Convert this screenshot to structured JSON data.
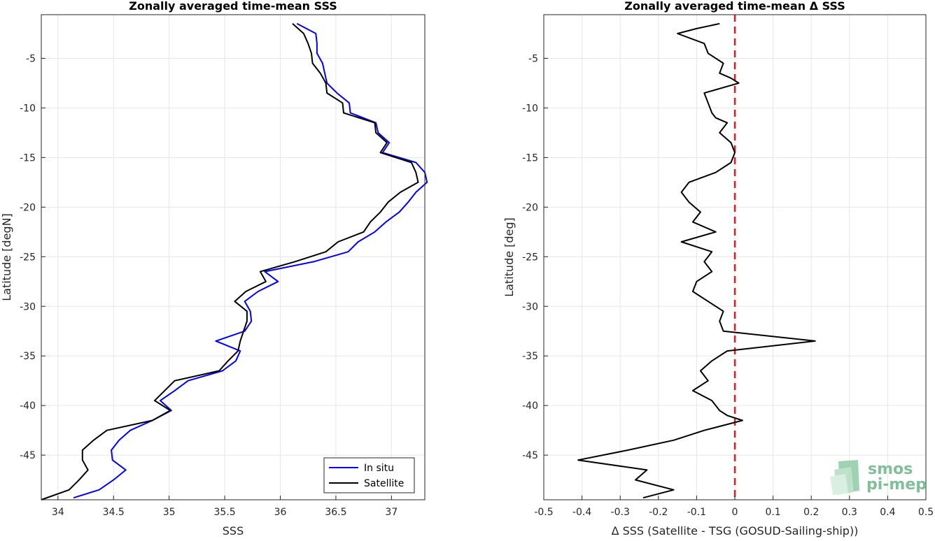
{
  "chart_data": [
    {
      "type": "line",
      "title": "Zonally averaged time-mean SSS",
      "xlabel": "SSS",
      "ylabel": "Latitude [degN]",
      "xlim": [
        33.85,
        37.3
      ],
      "ylim": [
        -49.5,
        -0.6
      ],
      "xticks": [
        34,
        34.5,
        35,
        35.5,
        36,
        36.5,
        37
      ],
      "xtick_labels": [
        "34",
        "34.5",
        "35",
        "35.5",
        "36",
        "36.5",
        "37"
      ],
      "yticks": [
        -45,
        -40,
        -35,
        -30,
        -25,
        -20,
        -15,
        -10,
        -5
      ],
      "ytick_labels": [
        "-45",
        "-40",
        "-35",
        "-30",
        "-25",
        "-20",
        "-15",
        "-10",
        "-5"
      ],
      "grid": true,
      "legend": "bottom-right",
      "series": [
        {
          "name": "In situ",
          "color": "#0000ff",
          "points": [
            [
              36.15,
              -1.5
            ],
            [
              36.32,
              -2.5
            ],
            [
              36.33,
              -3.5
            ],
            [
              36.33,
              -4.5
            ],
            [
              36.38,
              -5.5
            ],
            [
              36.4,
              -6.5
            ],
            [
              36.42,
              -7.5
            ],
            [
              36.51,
              -8.5
            ],
            [
              36.62,
              -9.5
            ],
            [
              36.63,
              -10.5
            ],
            [
              36.86,
              -11.5
            ],
            [
              36.88,
              -12.5
            ],
            [
              36.98,
              -13.5
            ],
            [
              36.92,
              -14.5
            ],
            [
              37.22,
              -15.5
            ],
            [
              37.3,
              -16.5
            ],
            [
              37.32,
              -17.5
            ],
            [
              37.22,
              -18.5
            ],
            [
              37.15,
              -19.5
            ],
            [
              37.07,
              -20.5
            ],
            [
              36.95,
              -21.5
            ],
            [
              36.85,
              -22.5
            ],
            [
              36.7,
              -23.5
            ],
            [
              36.61,
              -24.5
            ],
            [
              36.3,
              -25.5
            ],
            [
              35.86,
              -26.5
            ],
            [
              35.98,
              -27.5
            ],
            [
              35.8,
              -28.5
            ],
            [
              35.68,
              -29.5
            ],
            [
              35.73,
              -30.5
            ],
            [
              35.74,
              -31.5
            ],
            [
              35.68,
              -32.5
            ],
            [
              35.42,
              -33.5
            ],
            [
              35.64,
              -34.5
            ],
            [
              35.6,
              -35.5
            ],
            [
              35.48,
              -36.5
            ],
            [
              35.17,
              -37.5
            ],
            [
              35.05,
              -38.5
            ],
            [
              34.92,
              -39.5
            ],
            [
              35.02,
              -40.5
            ],
            [
              34.85,
              -41.5
            ],
            [
              34.65,
              -42.5
            ],
            [
              34.55,
              -43.5
            ],
            [
              34.48,
              -44.5
            ],
            [
              34.49,
              -45.5
            ],
            [
              34.61,
              -46.5
            ],
            [
              34.5,
              -47.5
            ],
            [
              34.37,
              -48.5
            ],
            [
              34.14,
              -49.3
            ]
          ]
        },
        {
          "name": "Satellite",
          "color": "#000000",
          "points": [
            [
              36.11,
              -1.5
            ],
            [
              36.21,
              -2.5
            ],
            [
              36.25,
              -3.5
            ],
            [
              36.28,
              -4.5
            ],
            [
              36.29,
              -5.5
            ],
            [
              36.36,
              -6.5
            ],
            [
              36.41,
              -7.5
            ],
            [
              36.42,
              -8.5
            ],
            [
              36.56,
              -9.5
            ],
            [
              36.57,
              -10.5
            ],
            [
              36.85,
              -11.5
            ],
            [
              36.86,
              -12.5
            ],
            [
              36.96,
              -13.5
            ],
            [
              36.9,
              -14.5
            ],
            [
              37.18,
              -15.5
            ],
            [
              37.22,
              -16.5
            ],
            [
              37.24,
              -17.5
            ],
            [
              37.08,
              -18.5
            ],
            [
              36.97,
              -19.5
            ],
            [
              36.9,
              -20.5
            ],
            [
              36.81,
              -21.5
            ],
            [
              36.75,
              -22.5
            ],
            [
              36.52,
              -23.5
            ],
            [
              36.41,
              -24.5
            ],
            [
              36.13,
              -25.5
            ],
            [
              35.82,
              -26.5
            ],
            [
              35.87,
              -27.5
            ],
            [
              35.69,
              -28.5
            ],
            [
              35.59,
              -29.5
            ],
            [
              35.7,
              -30.5
            ],
            [
              35.7,
              -31.5
            ],
            [
              35.67,
              -32.5
            ],
            [
              35.64,
              -33.5
            ],
            [
              35.62,
              -34.5
            ],
            [
              35.53,
              -35.5
            ],
            [
              35.45,
              -36.5
            ],
            [
              35.05,
              -37.5
            ],
            [
              34.96,
              -38.5
            ],
            [
              34.87,
              -39.5
            ],
            [
              35.01,
              -40.5
            ],
            [
              34.85,
              -41.5
            ],
            [
              34.44,
              -42.5
            ],
            [
              34.32,
              -43.5
            ],
            [
              34.22,
              -44.5
            ],
            [
              34.22,
              -45.5
            ],
            [
              34.27,
              -46.5
            ],
            [
              34.19,
              -47.5
            ],
            [
              34.1,
              -48.5
            ],
            [
              33.85,
              -49.5
            ]
          ]
        }
      ]
    },
    {
      "type": "line",
      "title": "Zonally averaged time-mean Δ SSS",
      "xlabel": "Δ SSS (Satellite - TSG (GOSUD-Sailing-ship))",
      "ylabel": "Latitude [deg]",
      "xlim": [
        -0.5,
        0.5
      ],
      "ylim": [
        -49.5,
        -0.6
      ],
      "xticks": [
        -0.5,
        -0.4,
        -0.3,
        -0.2,
        -0.1,
        0,
        0.1,
        0.2,
        0.3,
        0.4,
        0.5
      ],
      "xtick_labels": [
        "-0.5",
        "-0.4",
        "-0.3",
        "-0.2",
        "-0.1",
        "0",
        "0.1",
        "0.2",
        "0.3",
        "0.4",
        "0.5"
      ],
      "yticks": [
        -45,
        -40,
        -35,
        -30,
        -25,
        -20,
        -15,
        -10,
        -5
      ],
      "ytick_labels": [
        "-45",
        "-40",
        "-35",
        "-30",
        "-25",
        "-20",
        "-15",
        "-10",
        "-5"
      ],
      "grid": true,
      "reference_line": {
        "x": 0,
        "color": "#e31a1c",
        "style": "dashed"
      },
      "series": [
        {
          "color": "#000000",
          "points": [
            [
              -0.04,
              -1.5
            ],
            [
              -0.1,
              -2.0
            ],
            [
              -0.15,
              -2.5
            ],
            [
              -0.08,
              -3.5
            ],
            [
              -0.07,
              -4.5
            ],
            [
              -0.03,
              -5.5
            ],
            [
              -0.04,
              -6.5
            ],
            [
              -0.01,
              -7.0
            ],
            [
              0.01,
              -7.5
            ],
            [
              -0.08,
              -8.5
            ],
            [
              -0.07,
              -9.5
            ],
            [
              -0.06,
              -10.5
            ],
            [
              -0.05,
              -11.0
            ],
            [
              -0.02,
              -11.5
            ],
            [
              -0.04,
              -12.5
            ],
            [
              -0.01,
              -13.5
            ],
            [
              0.0,
              -14.5
            ],
            [
              -0.01,
              -15.5
            ],
            [
              -0.05,
              -16.5
            ],
            [
              -0.12,
              -17.5
            ],
            [
              -0.14,
              -18.5
            ],
            [
              -0.12,
              -19.5
            ],
            [
              -0.09,
              -20.5
            ],
            [
              -0.11,
              -21.5
            ],
            [
              -0.05,
              -22.5
            ],
            [
              -0.14,
              -23.5
            ],
            [
              -0.06,
              -24.5
            ],
            [
              -0.08,
              -25.5
            ],
            [
              -0.06,
              -26.5
            ],
            [
              -0.1,
              -27.5
            ],
            [
              -0.11,
              -28.5
            ],
            [
              -0.07,
              -29.5
            ],
            [
              -0.03,
              -30.5
            ],
            [
              -0.04,
              -31.5
            ],
            [
              -0.03,
              -32.5
            ],
            [
              0.21,
              -33.5
            ],
            [
              -0.02,
              -34.5
            ],
            [
              -0.06,
              -35.5
            ],
            [
              -0.09,
              -36.5
            ],
            [
              -0.07,
              -37.5
            ],
            [
              -0.11,
              -38.5
            ],
            [
              -0.06,
              -39.5
            ],
            [
              -0.04,
              -40.5
            ],
            [
              -0.02,
              -41.0
            ],
            [
              0.02,
              -41.5
            ],
            [
              -0.08,
              -42.5
            ],
            [
              -0.16,
              -43.5
            ],
            [
              -0.28,
              -44.5
            ],
            [
              -0.41,
              -45.5
            ],
            [
              -0.23,
              -46.5
            ],
            [
              -0.26,
              -47.5
            ],
            [
              -0.16,
              -48.5
            ],
            [
              -0.24,
              -49.3
            ]
          ]
        }
      ]
    }
  ],
  "legend": {
    "in_situ_label": "In situ",
    "satellite_label": "Satellite"
  },
  "logo": {
    "line1": "smos",
    "line2": "pi-mep"
  }
}
